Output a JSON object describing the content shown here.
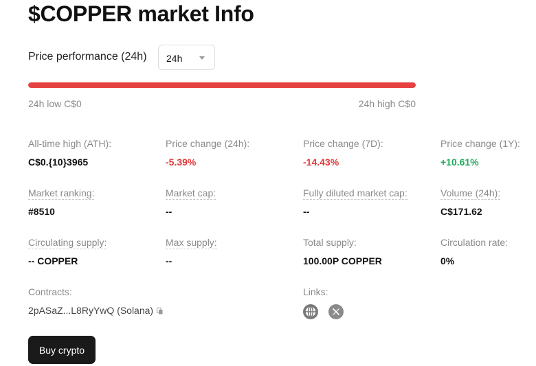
{
  "header": {
    "title": "$COPPER market Info"
  },
  "price_performance": {
    "label": "Price performance (24h)",
    "period_value": "24h",
    "low_label": "24h low C$0",
    "high_label": "24h high C$0",
    "range_fill_fraction": 1.0,
    "range_color": "#e74040"
  },
  "stats": {
    "ath": {
      "label": "All-time high (ATH):",
      "value": "C$0.{10}3965"
    },
    "change_24h": {
      "label": "Price change (24h):",
      "value": "-5.39%"
    },
    "change_7d": {
      "label": "Price change (7D):",
      "value": "-14.43%"
    },
    "change_1y": {
      "label": "Price change (1Y):",
      "value": "+10.61%"
    },
    "market_ranking": {
      "label": "Market ranking:",
      "value": "#8510"
    },
    "market_cap": {
      "label": "Market cap:",
      "value": "--"
    },
    "fdv": {
      "label": "Fully diluted market cap:",
      "value": "--"
    },
    "volume_24h": {
      "label": "Volume (24h):",
      "value": "C$171.62"
    },
    "circulating_supply": {
      "label": "Circulating supply:",
      "value": "-- COPPER"
    },
    "max_supply": {
      "label": "Max supply:",
      "value": "--"
    },
    "total_supply": {
      "label": "Total supply:",
      "value": "100.00P COPPER"
    },
    "circulation_rate": {
      "label": "Circulation rate:",
      "value": "0%"
    }
  },
  "colors": {
    "negative": "#e03838",
    "positive": "#1faa5b"
  },
  "contracts": {
    "label": "Contracts:",
    "value": "2pASaZ...L8RyYwQ (Solana)",
    "copy_icon": "copy-icon"
  },
  "links": {
    "label": "Links:",
    "icons": [
      "globe-icon",
      "x-logo-icon"
    ]
  },
  "actions": {
    "buy_label": "Buy crypto"
  }
}
